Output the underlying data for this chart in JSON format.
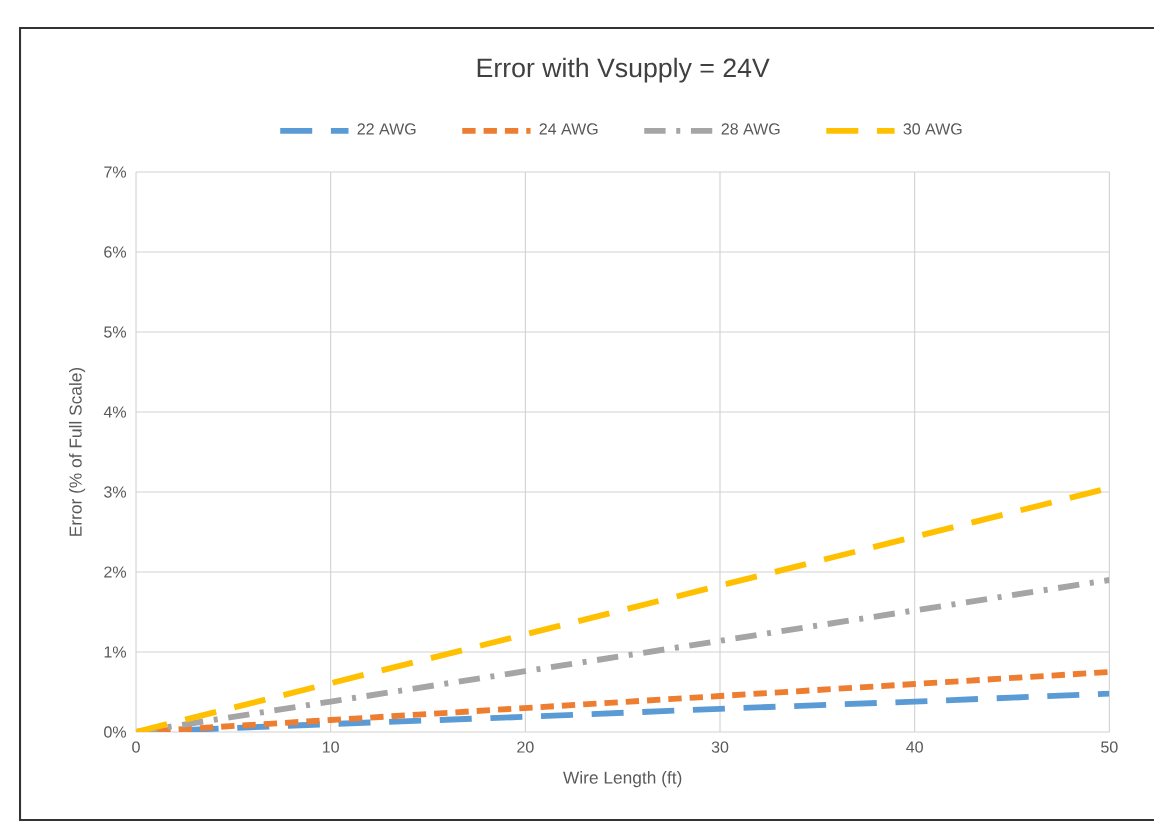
{
  "chart_data": {
    "type": "line",
    "title": "Error with Vsupply = 24V",
    "xlabel": "Wire Length (ft)",
    "ylabel": "Error (% of Full Scale)",
    "x": [
      0,
      10,
      20,
      30,
      40,
      50
    ],
    "series": [
      {
        "name": "22 AWG",
        "color": "#5b9bd5",
        "line_style": "longdash",
        "values": [
          0,
          0.1,
          0.19,
          0.29,
          0.38,
          0.48
        ]
      },
      {
        "name": "24 AWG",
        "color": "#ed7d31",
        "line_style": "dashed",
        "values": [
          0,
          0.15,
          0.3,
          0.45,
          0.6,
          0.75
        ]
      },
      {
        "name": "28 AWG",
        "color": "#a5a5a5",
        "line_style": "dashdot",
        "values": [
          0,
          0.38,
          0.76,
          1.14,
          1.52,
          1.9
        ]
      },
      {
        "name": "30 AWG",
        "color": "#ffc000",
        "line_style": "longdash",
        "values": [
          0,
          0.61,
          1.22,
          1.83,
          2.44,
          3.05
        ]
      }
    ],
    "xlim": [
      0,
      50
    ],
    "xticks": [
      0,
      10,
      20,
      30,
      40,
      50
    ],
    "ylim": [
      0,
      7
    ],
    "yticks": [
      {
        "value": 0,
        "label": "0%"
      },
      {
        "value": 1,
        "label": "1%"
      },
      {
        "value": 2,
        "label": "2%"
      },
      {
        "value": 3,
        "label": "3%"
      },
      {
        "value": 4,
        "label": "4%"
      },
      {
        "value": 5,
        "label": "5%"
      },
      {
        "value": 6,
        "label": "6%"
      },
      {
        "value": 7,
        "label": "7%"
      }
    ],
    "grid": true,
    "legend": "top"
  }
}
